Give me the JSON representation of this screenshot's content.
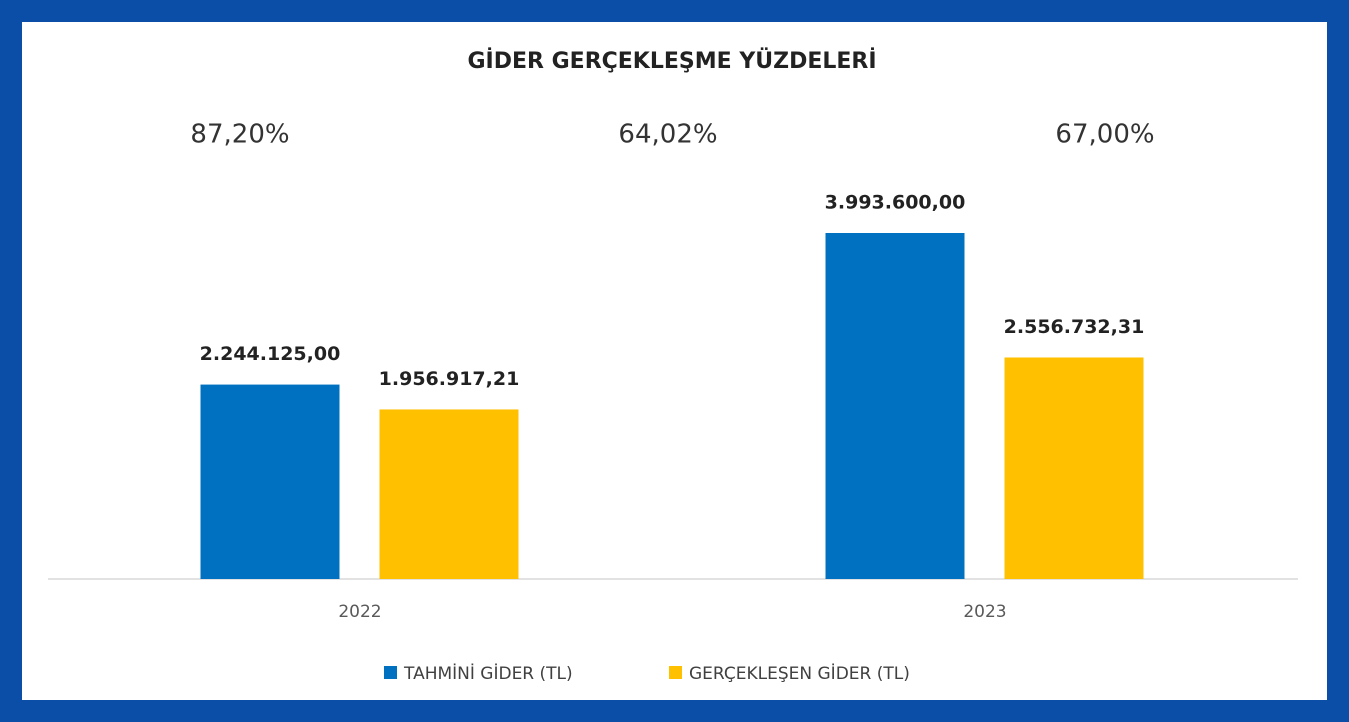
{
  "chart_data": {
    "type": "bar",
    "title": "GİDER GERÇEKLEŞME YÜZDELERİ",
    "annotations": [
      "87,20%",
      "64,02%",
      "67,00%"
    ],
    "categories": [
      "2022",
      "2023"
    ],
    "series": [
      {
        "name": "TAHMİNİ GİDER (TL)",
        "color": "#0070c0",
        "values": [
          2244125.0,
          3993600.0
        ],
        "value_labels": [
          "2.244.125,00",
          "3.993.600,00"
        ]
      },
      {
        "name": "GERÇEKLEŞEN GİDER (TL)",
        "color": "#ffc000",
        "values": [
          1956917.21,
          2556732.31
        ],
        "value_labels": [
          "1.956.917,21",
          "2.556.732,31"
        ]
      }
    ],
    "grid": false,
    "legend": "bottom"
  }
}
